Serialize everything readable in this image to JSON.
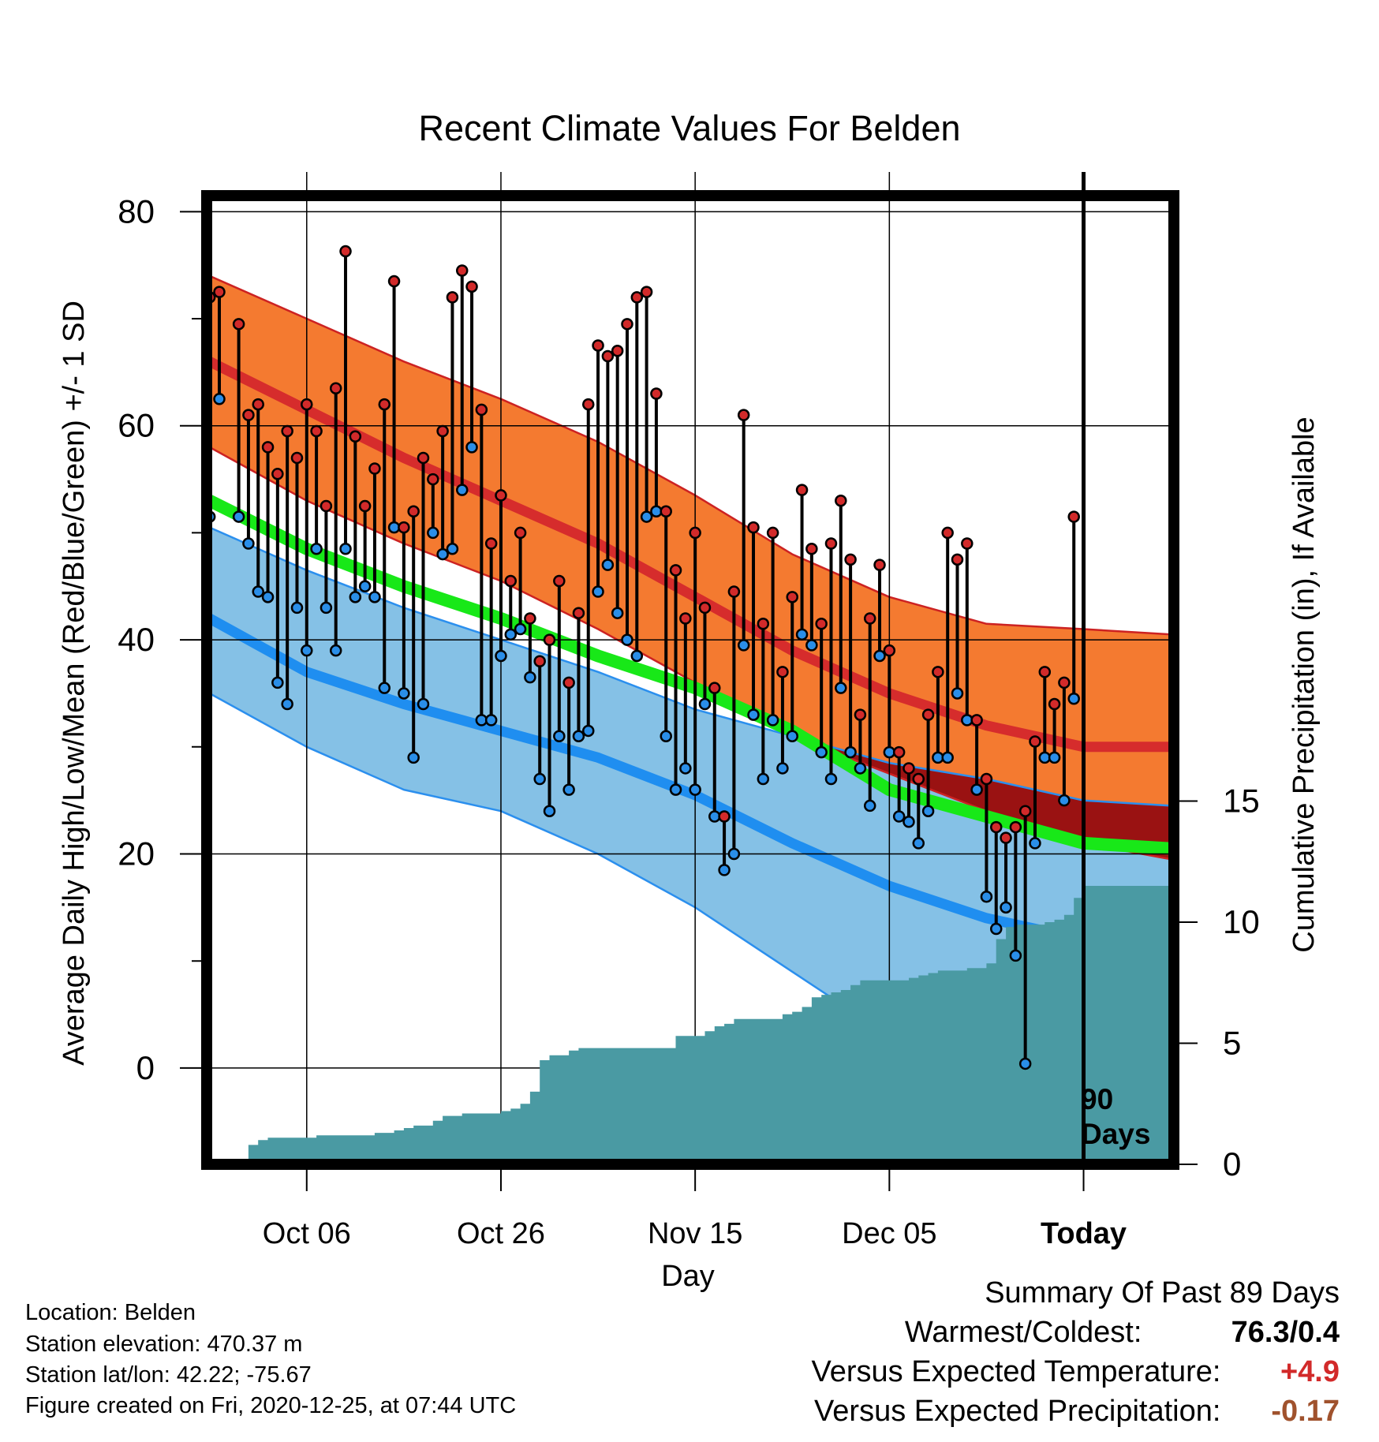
{
  "chart_data": {
    "type": "line",
    "title": "Recent Climate Values For Belden",
    "xlabel": "Day",
    "ylabel": "Average Daily High/Low/Mean (Red/Blue/Green) +/- 1 SD",
    "y2label": "Cumulative Precipitation (in), If Available",
    "ylim": [
      -9,
      81.5
    ],
    "y_ticks": [
      0,
      20,
      40,
      60,
      80
    ],
    "y2lim": [
      0,
      40
    ],
    "y2_ticks": [
      0,
      5,
      10,
      15
    ],
    "x_ticks": [
      {
        "day": 10,
        "label": "Oct 06"
      },
      {
        "day": 30,
        "label": "Oct 26"
      },
      {
        "day": 50,
        "label": "Nov 15"
      },
      {
        "day": 70,
        "label": "Dec 05"
      },
      {
        "day": 90,
        "label": "Today"
      }
    ],
    "x_range": [
      -0.3,
      99.3
    ],
    "today_marker": {
      "day": 90,
      "label_line1": "90",
      "label_line2": "Days"
    },
    "normals": {
      "days": [
        0,
        10,
        20,
        30,
        40,
        50,
        60,
        70,
        80,
        90,
        99
      ],
      "high_mean": [
        66,
        61.5,
        57,
        53,
        49,
        44,
        39,
        35,
        32,
        30,
        30
      ],
      "high_sd_upper": [
        74,
        70,
        66,
        62.5,
        58.5,
        53.5,
        48,
        44,
        41.5,
        41,
        40.5
      ],
      "high_sd_lower": [
        58,
        53,
        49,
        45.5,
        41,
        36,
        31,
        27.5,
        24,
        21,
        19.5
      ],
      "low_mean": [
        42,
        37,
        34,
        31.5,
        29,
        25.5,
        21,
        17,
        14,
        12,
        12
      ],
      "low_sd_upper": [
        50.5,
        46.5,
        43,
        40,
        37,
        33.5,
        31,
        28.5,
        27,
        25,
        24.5
      ],
      "low_sd_lower": [
        35,
        30,
        26,
        24,
        20,
        15,
        9,
        3,
        0,
        0,
        0
      ],
      "mean": [
        53,
        48.5,
        45,
        42,
        38.5,
        35.5,
        31.5,
        26,
        23.5,
        21,
        20.5
      ]
    },
    "series": [
      {
        "name": "High",
        "values": [
          72,
          72.5,
          null,
          69.5,
          61,
          62,
          58,
          55.5,
          59.5,
          57,
          62,
          59.5,
          52.5,
          63.5,
          76.3,
          59,
          52.5,
          56,
          62,
          73.5,
          50.5,
          52,
          57,
          55,
          59.5,
          72,
          74.5,
          73,
          61.5,
          49,
          53.5,
          45.5,
          50,
          42,
          38,
          40,
          45.5,
          36,
          42.5,
          62,
          67.5,
          66.5,
          67,
          69.5,
          72,
          72.5,
          63,
          52,
          46.5,
          42,
          50,
          43,
          35.5,
          23.5,
          44.5,
          61,
          50.5,
          41.5,
          50,
          37,
          44,
          54,
          48.5,
          41.5,
          49,
          53,
          47.5,
          33,
          42,
          47,
          39,
          29.5,
          28,
          27,
          33,
          37,
          50,
          47.5,
          49,
          32.5,
          27,
          22.5,
          21.5,
          22.5,
          24,
          30.5,
          37,
          34,
          36,
          51.5
        ]
      },
      {
        "name": "Low",
        "values": [
          51.5,
          62.5,
          null,
          51.5,
          49,
          44.5,
          44,
          36,
          34,
          43,
          39,
          48.5,
          43,
          39,
          48.5,
          44,
          45,
          44,
          35.5,
          50.5,
          35,
          29,
          34,
          50,
          48,
          48.5,
          54,
          58,
          32.5,
          32.5,
          38.5,
          40.5,
          41,
          36.5,
          27,
          24,
          31,
          26,
          31,
          31.5,
          44.5,
          47,
          42.5,
          40,
          38.5,
          51.5,
          52,
          31,
          26,
          28,
          26,
          34,
          23.5,
          18.5,
          20,
          39.5,
          33,
          27,
          32.5,
          28,
          31,
          40.5,
          39.5,
          29.5,
          27,
          35.5,
          29.5,
          28,
          24.5,
          38.5,
          29.5,
          23.5,
          23,
          21,
          24,
          29,
          29,
          35,
          32.5,
          26,
          16,
          13,
          15,
          10.5,
          0.4,
          21,
          29,
          29,
          25,
          34.5
        ]
      },
      {
        "name": "Cumulative Precipitation",
        "values": [
          0,
          0,
          0,
          0.2,
          0.8,
          1.0,
          1.1,
          1.1,
          1.1,
          1.1,
          1.1,
          1.2,
          1.2,
          1.2,
          1.2,
          1.2,
          1.2,
          1.3,
          1.3,
          1.4,
          1.5,
          1.6,
          1.6,
          1.8,
          2.0,
          2.0,
          2.1,
          2.1,
          2.1,
          2.1,
          2.2,
          2.3,
          2.5,
          3.0,
          4.3,
          4.5,
          4.5,
          4.7,
          4.8,
          4.8,
          4.8,
          4.8,
          4.8,
          4.8,
          4.8,
          4.8,
          4.8,
          4.8,
          5.3,
          5.3,
          5.3,
          5.5,
          5.7,
          5.8,
          6.0,
          6.0,
          6.0,
          6.0,
          6.0,
          6.2,
          6.3,
          6.5,
          6.9,
          7.0,
          7.1,
          7.2,
          7.4,
          7.6,
          7.6,
          7.6,
          7.6,
          7.6,
          7.7,
          7.8,
          7.9,
          8.0,
          8.0,
          8.0,
          8.1,
          8.1,
          8.3,
          9.3,
          9.8,
          9.9,
          9.9,
          9.9,
          10.0,
          10.1,
          10.3,
          11.0,
          11.5,
          11.5,
          11.5,
          11.5,
          11.5,
          11.5,
          11.5,
          11.5,
          11.5,
          11.5
        ]
      }
    ],
    "colors": {
      "high_band": "#f47a30",
      "high_mean": "#d62c2c",
      "high_edge": "#cc2222",
      "low_band": "#85c1e6",
      "low_mean": "#1f8ef0",
      "low_edge": "#2b8fee",
      "mean": "#18e818",
      "overlap": "#9a1212",
      "precip": "#4a9aa3",
      "high_dot": "#d22a2a",
      "low_dot": "#2a8ee8"
    }
  },
  "location": "Location: Belden",
  "elevation": "Station elevation: 470.37 m",
  "latlon": "Station lat/lon: 42.22; -75.67",
  "created": "Figure created on Fri, 2020-12-25, at 07:44 UTC",
  "summary": {
    "title": "Summary Of Past 89 Days",
    "warm_label": "Warmest/Coldest:",
    "warm_value": "76.3/0.4",
    "temp_label": "Versus Expected Temperature:",
    "temp_value": "+4.9",
    "temp_color": "#d22a2a",
    "precip_label": "Versus Expected Precipitation:",
    "precip_value": "-0.17",
    "precip_color": "#a0522d"
  }
}
